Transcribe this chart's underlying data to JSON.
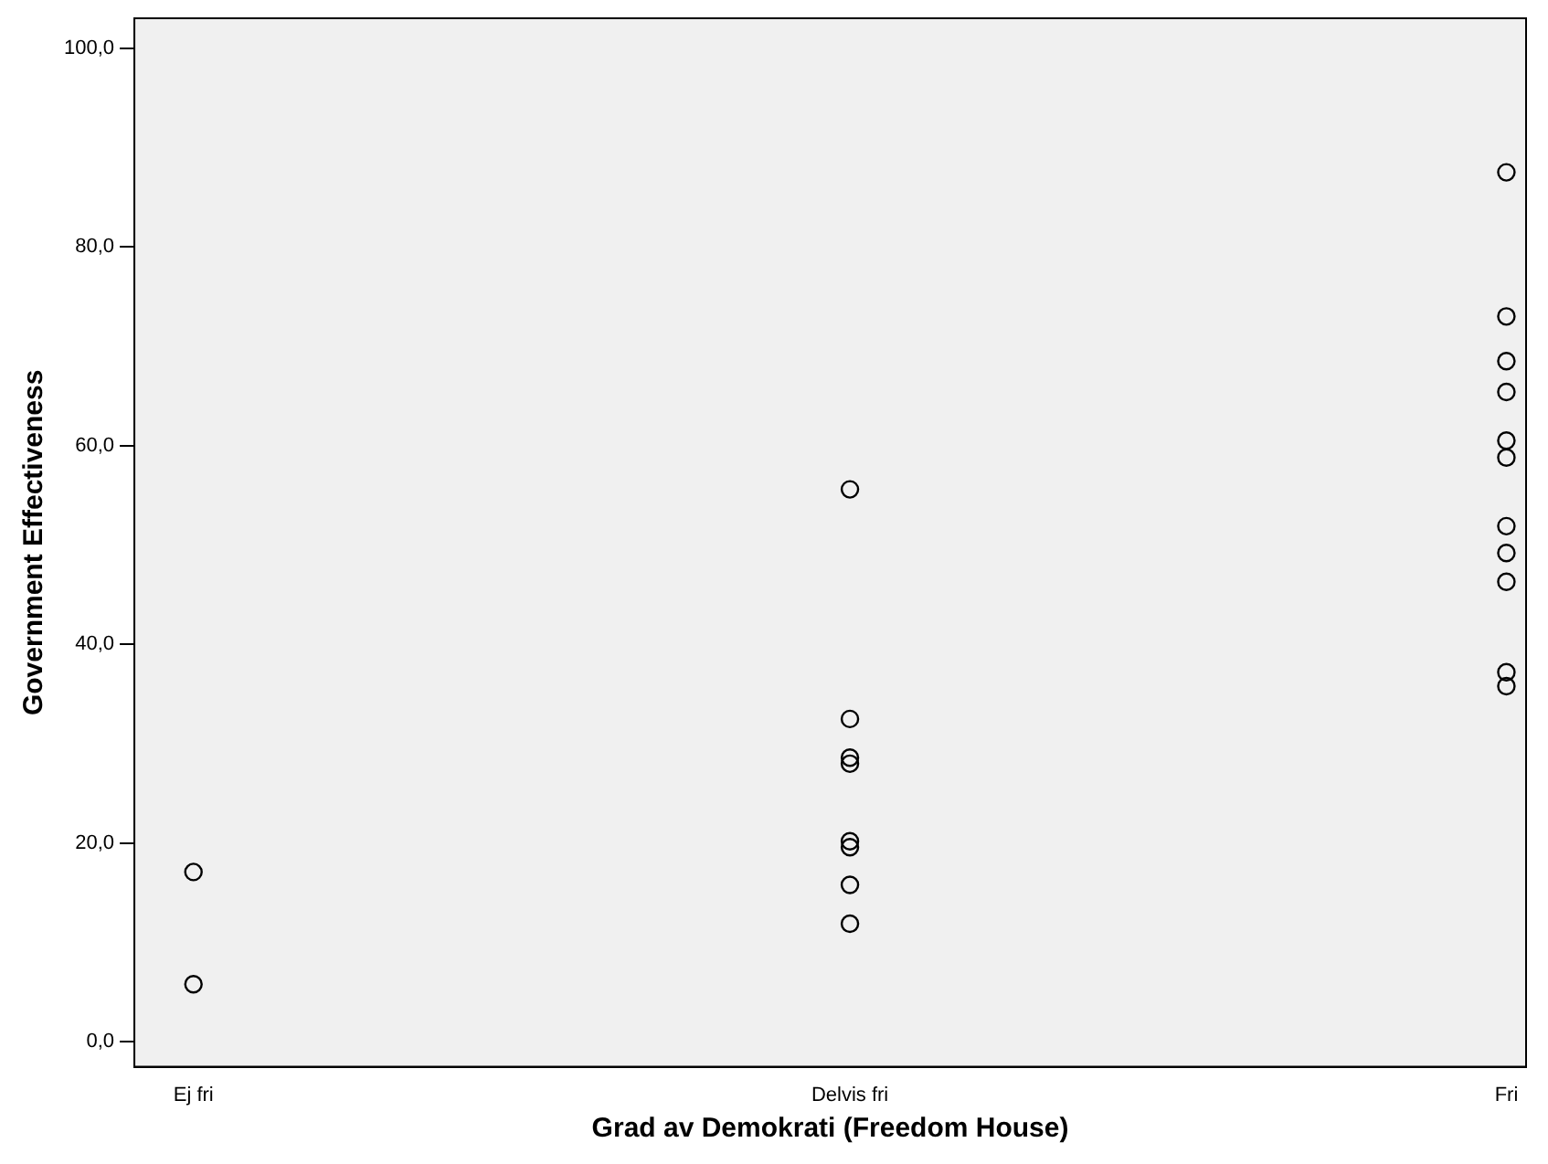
{
  "chart_data": {
    "type": "scatter",
    "xlabel": "Grad av Demokrati (Freedom House)",
    "ylabel": "Government Effectiveness",
    "categories": [
      "Ej fri",
      "Delvis fri",
      "Fri"
    ],
    "series": [
      {
        "color": "#000000",
        "x": [
          "Ej fri",
          "Ej fri",
          "Delvis fri",
          "Delvis fri",
          "Delvis fri",
          "Delvis fri",
          "Delvis fri",
          "Delvis fri",
          "Delvis fri",
          "Delvis fri",
          "Fri",
          "Fri",
          "Fri",
          "Fri",
          "Fri",
          "Fri",
          "Fri",
          "Fri",
          "Fri",
          "Fri",
          "Fri"
        ],
        "values": [
          17.1,
          5.8,
          55.6,
          32.5,
          28.6,
          28.0,
          20.2,
          19.6,
          15.8,
          11.9,
          87.5,
          73.0,
          68.5,
          65.4,
          60.5,
          58.8,
          51.9,
          49.2,
          46.3,
          37.2,
          35.8
        ]
      }
    ],
    "ylim": [
      -2.5,
      103
    ],
    "yticks": [
      {
        "value": 0,
        "label": "0,0"
      },
      {
        "value": 20,
        "label": "20,0"
      },
      {
        "value": 40,
        "label": "40,0"
      },
      {
        "value": 60,
        "label": "60,0"
      },
      {
        "value": 80,
        "label": "80,0"
      },
      {
        "value": 100,
        "label": "100,0"
      }
    ],
    "grid": false,
    "legend": false,
    "marker": "circle"
  }
}
